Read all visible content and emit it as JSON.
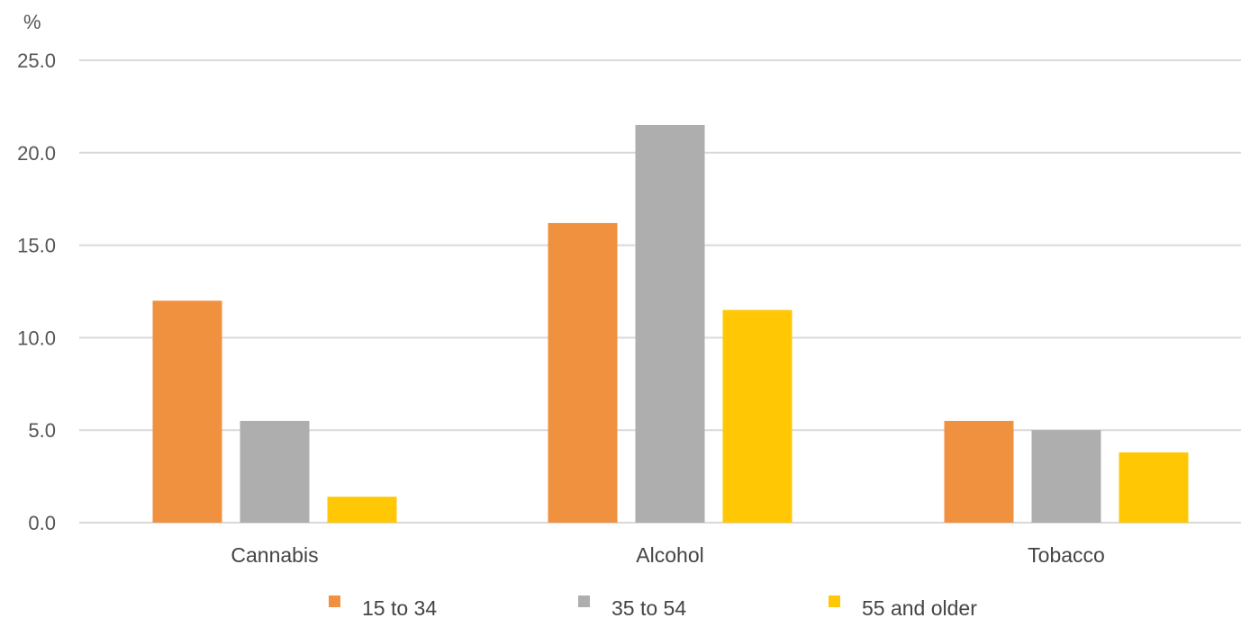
{
  "chart_data": {
    "type": "bar",
    "ylabel": "%",
    "ylim": [
      0,
      25
    ],
    "y_ticks": [
      "0.0",
      "5.0",
      "10.0",
      "15.0",
      "20.0",
      "25.0"
    ],
    "y_tick_values": [
      0,
      5,
      10,
      15,
      20,
      25
    ],
    "grid": true,
    "legend_position": "bottom",
    "categories": [
      "Cannabis",
      "Alcohol",
      "Tobacco"
    ],
    "series": [
      {
        "name": "15 to 34",
        "values": [
          12.0,
          16.2,
          5.5
        ],
        "color": "#F0913F"
      },
      {
        "name": "35 to 54",
        "values": [
          5.5,
          21.5,
          5.0
        ],
        "color": "#AEAEAE"
      },
      {
        "name": "55 and older",
        "values": [
          1.4,
          11.5,
          3.8
        ],
        "color": "#FFC704"
      }
    ]
  }
}
